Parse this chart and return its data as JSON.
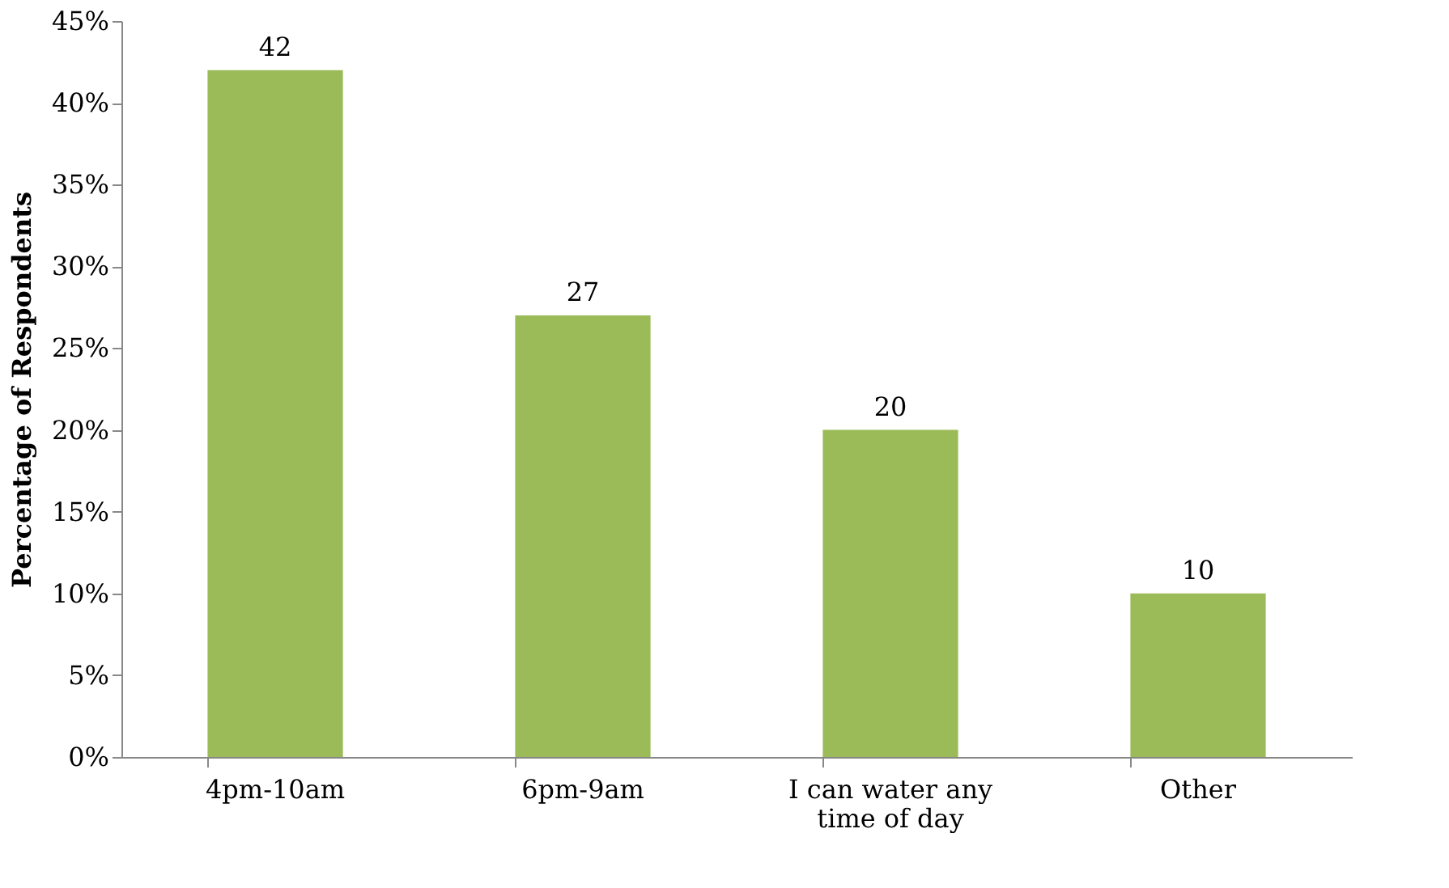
{
  "chart_data": {
    "type": "bar",
    "ylabel": "Percentage of Respondents",
    "categories": [
      "4pm-10am",
      "6pm-9am",
      "I can water any time of day",
      "Other"
    ],
    "values": [
      42,
      27,
      20,
      10
    ],
    "color": "#9bbb59",
    "ylim": [
      0,
      45
    ],
    "yticks": [
      {
        "value": 0,
        "label": "0%"
      },
      {
        "value": 5,
        "label": "5%"
      },
      {
        "value": 10,
        "label": "10%"
      },
      {
        "value": 15,
        "label": "15%"
      },
      {
        "value": 20,
        "label": "20%"
      },
      {
        "value": 25,
        "label": "25%"
      },
      {
        "value": 30,
        "label": "30%"
      },
      {
        "value": 35,
        "label": "35%"
      },
      {
        "value": 40,
        "label": "40%"
      },
      {
        "value": 45,
        "label": "45%"
      }
    ],
    "data_labels": true,
    "grid": false
  }
}
